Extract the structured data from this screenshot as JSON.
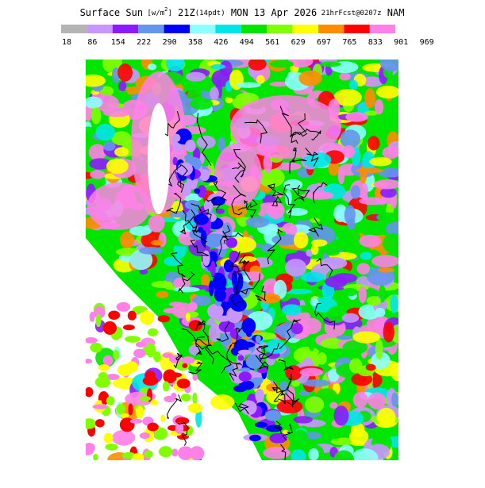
{
  "header": {
    "title_parts": [
      {
        "text": "Surface Sun",
        "size": "large"
      },
      {
        "text": "[w/m",
        "size": "small"
      },
      {
        "text": "2",
        "size": "sup"
      },
      {
        "text": "]",
        "size": "small"
      },
      {
        "text": "21Z",
        "size": "large"
      },
      {
        "text": "(14pdt)",
        "size": "small"
      },
      {
        "text": "MON 13 Apr 2026",
        "size": "large"
      },
      {
        "text": "21hrFcst@0207z",
        "size": "small"
      },
      {
        "text": "NAM",
        "size": "large"
      }
    ]
  },
  "colorbar": {
    "bins": [
      18,
      86,
      154,
      222,
      290,
      358,
      426,
      494,
      561,
      629,
      697,
      765,
      833,
      901,
      969
    ],
    "colors": [
      "#b4b4b4",
      "#c896ff",
      "#8c1aff",
      "#6495ed",
      "#0000ff",
      "#8cffff",
      "#00e6e6",
      "#00e600",
      "#80ff00",
      "#ffff00",
      "#ff8c00",
      "#ff0000",
      "#ff80e6",
      "#ffffff"
    ]
  }
}
